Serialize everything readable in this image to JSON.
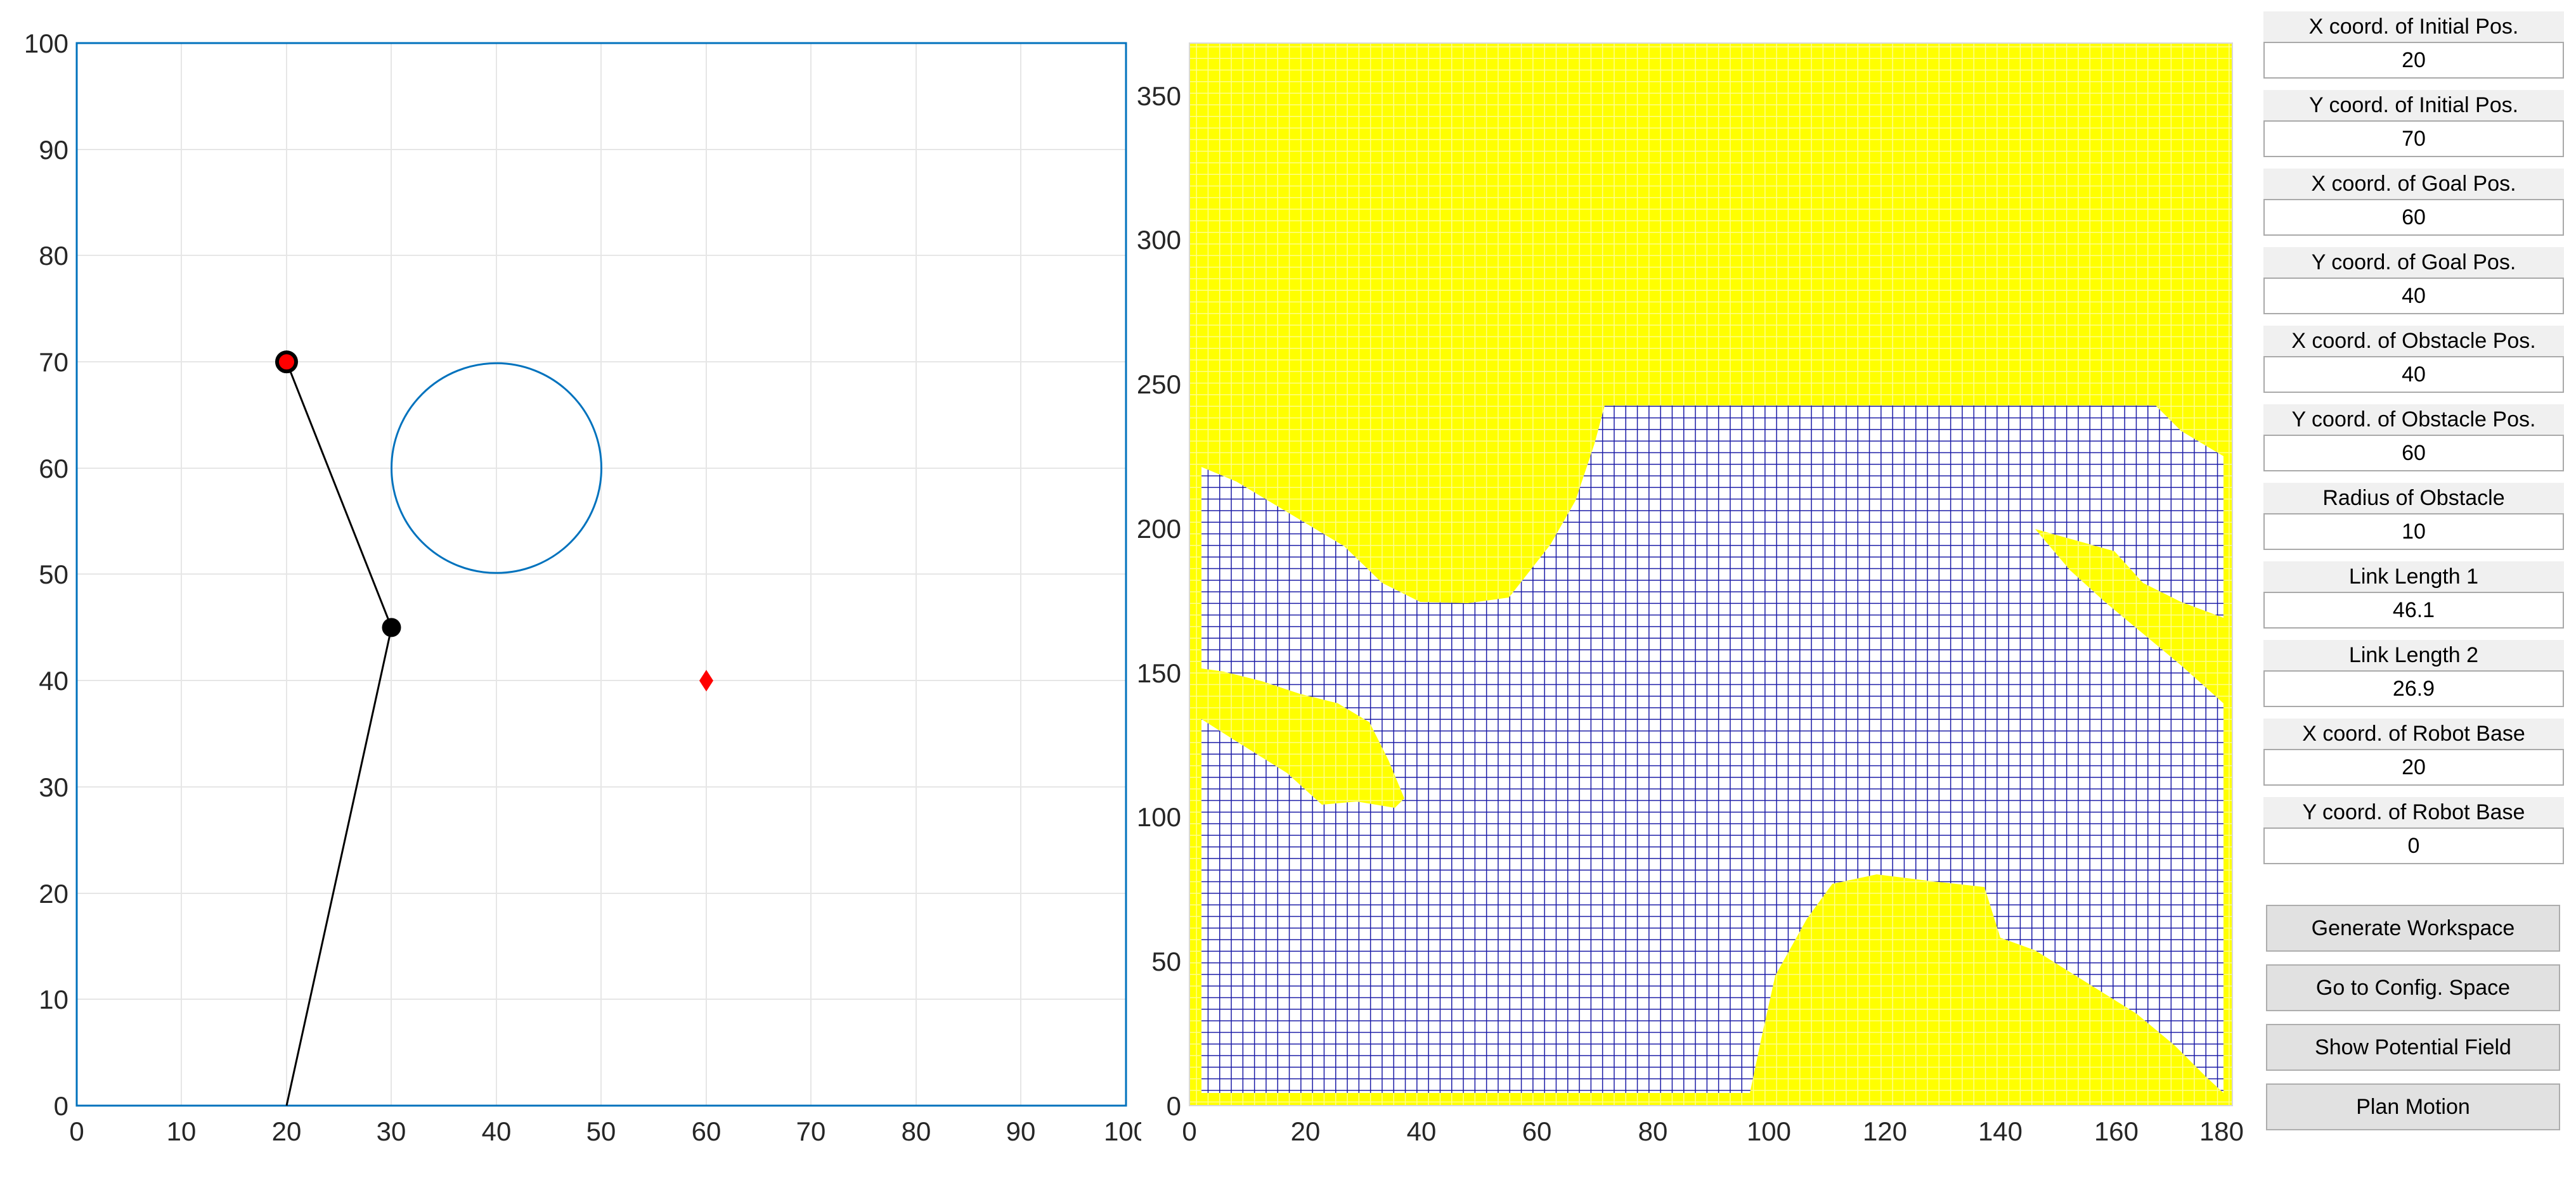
{
  "workspace_plot": {
    "x_ticks": [
      "0",
      "10",
      "20",
      "30",
      "40",
      "50",
      "60",
      "70",
      "80",
      "90",
      "100"
    ],
    "y_ticks": [
      "0",
      "10",
      "20",
      "30",
      "40",
      "50",
      "60",
      "70",
      "80",
      "90",
      "100"
    ],
    "xlim": [
      0,
      100
    ],
    "ylim": [
      0,
      100
    ],
    "axes_color": "#0072bd",
    "robot": {
      "base": [
        20,
        0
      ],
      "elbow": [
        30,
        45
      ],
      "end_effector": [
        20,
        70
      ]
    },
    "obstacle": {
      "center": [
        40,
        60
      ],
      "radius": 10,
      "color": "#0072bd"
    },
    "goal": {
      "position": [
        60,
        40
      ],
      "color": "#ff0000"
    }
  },
  "config_space_plot": {
    "x_ticks": [
      "0",
      "20",
      "40",
      "60",
      "80",
      "100",
      "120",
      "140",
      "160",
      "180"
    ],
    "y_ticks": [
      "0",
      "50",
      "100",
      "150",
      "200",
      "250",
      "300",
      "350"
    ],
    "xlim": [
      0,
      180
    ],
    "ylim": [
      0,
      360
    ],
    "free_color": "#ffff00",
    "obstacle_color": "#1a1aa6"
  },
  "fields": [
    {
      "label": "X coord. of Initial Pos.",
      "value": "20"
    },
    {
      "label": "Y coord. of Initial Pos.",
      "value": "70"
    },
    {
      "label": "X coord. of Goal Pos.",
      "value": "60"
    },
    {
      "label": "Y coord. of Goal Pos.",
      "value": "40"
    },
    {
      "label": "X coord. of Obstacle Pos.",
      "value": "40"
    },
    {
      "label": "Y coord. of Obstacle Pos.",
      "value": "60"
    },
    {
      "label": "Radius of Obstacle",
      "value": "10"
    },
    {
      "label": "Link Length 1",
      "value": "46.1"
    },
    {
      "label": "Link Length 2",
      "value": "26.9"
    },
    {
      "label": "X coord. of Robot Base",
      "value": "20"
    },
    {
      "label": "Y coord. of Robot Base",
      "value": "0"
    }
  ],
  "buttons": {
    "generate": "Generate Workspace",
    "config": "Go to Config. Space",
    "potential": "Show Potential Field",
    "plan": "Plan Motion"
  }
}
